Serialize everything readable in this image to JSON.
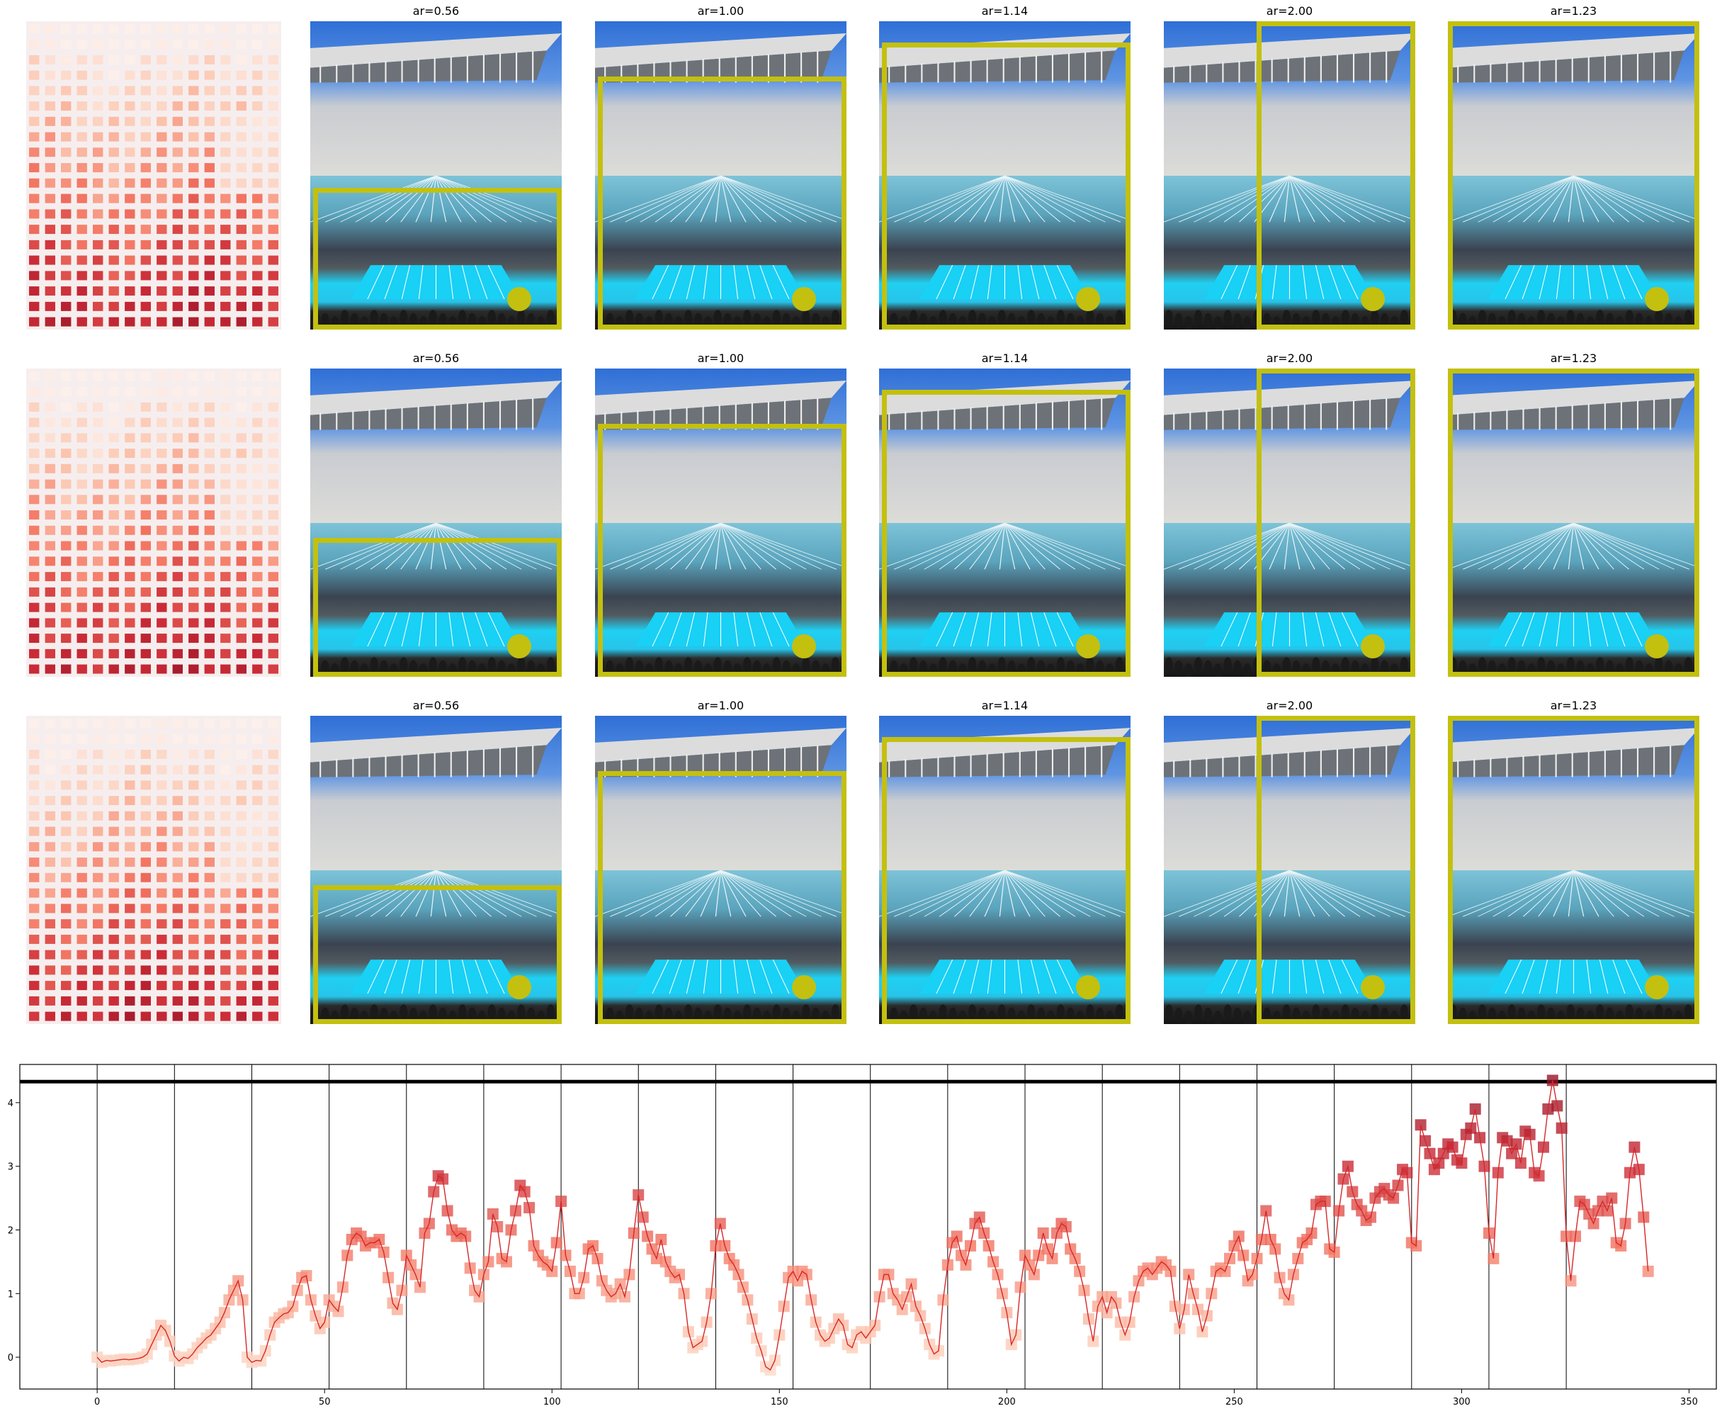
{
  "colors": {
    "crop": "#c3c010",
    "line": "#d62728",
    "heat_low": "#fde0d2",
    "heat_high": "#b2182b"
  },
  "panels": {
    "titles": [
      "ar=0.56",
      "ar=1.00",
      "ar=1.14",
      "ar=2.00",
      "ar=1.23"
    ],
    "rows": 3
  },
  "chart_data": {
    "type": "line",
    "xlim": [
      -17,
      356
    ],
    "ylim": [
      -0.5,
      4.6
    ],
    "xticks": [
      0,
      50,
      100,
      150,
      200,
      250,
      300,
      350
    ],
    "yticks": [
      0,
      1,
      2,
      3,
      4
    ],
    "hline": 4.33,
    "vlines": [
      0,
      17,
      34,
      51,
      68,
      85,
      102,
      119,
      136,
      153,
      170,
      187,
      204,
      221,
      238,
      255,
      272,
      289,
      306,
      323
    ],
    "grid": false,
    "series": [
      {
        "x_start": 0,
        "values": [
          0.0,
          -0.08,
          -0.05,
          -0.06,
          -0.05,
          -0.04,
          -0.03,
          -0.04,
          -0.03,
          -0.02,
          0.0,
          0.05,
          0.2,
          0.35,
          0.5,
          0.42,
          0.25,
          0.02,
          -0.06,
          0.0,
          -0.02,
          0.05,
          0.15,
          0.22,
          0.3,
          0.35,
          0.45,
          0.55,
          0.7,
          0.9,
          1.05,
          1.2,
          0.9,
          0.0,
          -0.08,
          -0.05,
          -0.06,
          0.1,
          0.35,
          0.55,
          0.62,
          0.68,
          0.7,
          0.8,
          1.05,
          1.25,
          1.28,
          0.9,
          0.65,
          0.45,
          0.55,
          0.9,
          0.8,
          0.72,
          1.1,
          1.6,
          1.85,
          1.95,
          1.9,
          1.75,
          1.8,
          1.8,
          1.85,
          1.65,
          1.25,
          0.85,
          0.75,
          1.05,
          1.6,
          1.45,
          1.3,
          1.1,
          1.95,
          2.1,
          2.6,
          2.85,
          2.8,
          2.3,
          2.0,
          1.9,
          1.95,
          1.9,
          1.4,
          1.05,
          0.95,
          1.3,
          1.5,
          2.25,
          2.05,
          1.55,
          1.5,
          2.0,
          2.3,
          2.7,
          2.6,
          2.35,
          1.75,
          1.6,
          1.5,
          1.45,
          1.35,
          1.8,
          2.45,
          1.6,
          1.35,
          1.0,
          1.0,
          1.25,
          1.7,
          1.75,
          1.55,
          1.2,
          1.05,
          0.95,
          1.0,
          1.15,
          0.95,
          1.3,
          1.95,
          2.55,
          2.2,
          1.9,
          1.7,
          1.55,
          1.85,
          1.5,
          1.35,
          1.25,
          1.3,
          1.0,
          0.4,
          0.15,
          0.2,
          0.25,
          0.55,
          1.0,
          1.75,
          2.1,
          1.75,
          1.55,
          1.45,
          1.3,
          1.1,
          0.9,
          0.6,
          0.3,
          0.1,
          -0.15,
          -0.2,
          -0.05,
          0.35,
          0.8,
          1.25,
          1.35,
          1.2,
          1.35,
          1.3,
          0.9,
          0.55,
          0.35,
          0.25,
          0.3,
          0.45,
          0.6,
          0.5,
          0.2,
          0.15,
          0.35,
          0.4,
          0.3,
          0.4,
          0.5,
          0.95,
          1.3,
          1.3,
          1.0,
          0.9,
          0.75,
          0.95,
          1.15,
          0.8,
          0.65,
          0.45,
          0.2,
          0.05,
          0.1,
          0.9,
          1.45,
          1.8,
          1.9,
          1.6,
          1.45,
          1.75,
          2.1,
          2.2,
          1.95,
          1.75,
          1.5,
          1.3,
          1.0,
          0.7,
          0.2,
          0.35,
          1.1,
          1.6,
          1.45,
          1.3,
          1.6,
          1.95,
          1.7,
          1.55,
          1.95,
          2.1,
          2.05,
          1.7,
          1.55,
          1.35,
          1.05,
          0.6,
          0.25,
          0.8,
          0.95,
          0.7,
          0.95,
          0.85,
          0.55,
          0.35,
          0.55,
          0.95,
          1.2,
          1.35,
          1.4,
          1.3,
          1.4,
          1.5,
          1.45,
          1.35,
          0.8,
          0.45,
          0.75,
          1.3,
          1.0,
          0.75,
          0.4,
          0.65,
          1.0,
          1.35,
          1.4,
          1.35,
          1.55,
          1.75,
          1.9,
          1.6,
          1.2,
          1.3,
          1.55,
          1.85,
          2.3,
          1.85,
          1.7,
          1.25,
          1.0,
          0.9,
          1.3,
          1.55,
          1.8,
          1.85,
          1.95,
          2.4,
          2.45,
          2.45,
          1.7,
          1.65,
          2.3,
          2.8,
          3.0,
          2.6,
          2.4,
          2.3,
          2.15,
          2.2,
          2.5,
          2.6,
          2.65,
          2.55,
          2.5,
          2.7,
          2.95,
          2.9,
          1.8,
          1.75,
          3.65,
          3.4,
          3.2,
          2.95,
          3.05,
          3.2,
          3.35,
          3.3,
          3.1,
          3.05,
          3.5,
          3.6,
          3.9,
          3.45,
          3.0,
          1.95,
          1.55,
          2.9,
          3.45,
          3.4,
          3.2,
          3.35,
          3.05,
          3.55,
          3.5,
          2.9,
          2.85,
          3.3,
          3.9,
          4.35,
          3.95,
          3.6,
          1.9,
          1.2,
          1.9,
          2.45,
          2.4,
          2.25,
          2.1,
          2.3,
          2.45,
          2.3,
          2.5,
          1.8,
          1.75,
          2.1,
          2.9,
          3.3,
          2.95,
          2.2,
          1.35
        ]
      }
    ]
  }
}
